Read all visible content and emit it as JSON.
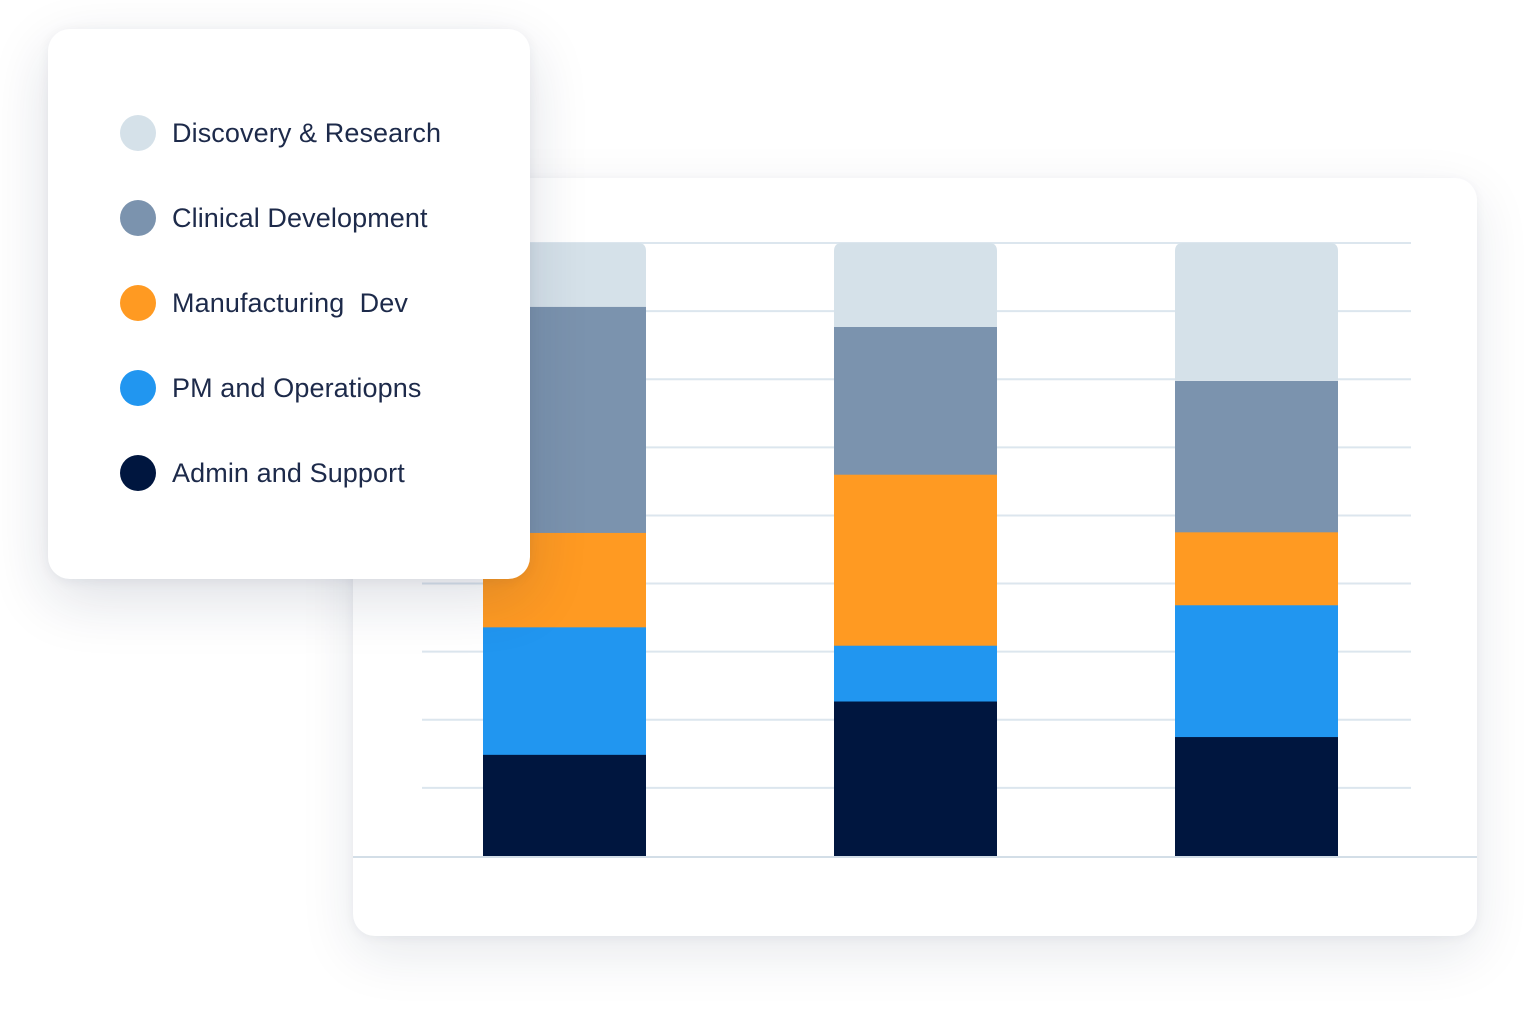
{
  "chart_data": {
    "type": "bar",
    "stacked": true,
    "categories": [
      "",
      "",
      ""
    ],
    "ylim": [
      0,
      100
    ],
    "grid": true,
    "legend_position": "top-left overlay",
    "series": [
      {
        "name": "Admin and Support",
        "color": "#00163f",
        "values": [
          16.6,
          25.3,
          19.5
        ]
      },
      {
        "name": "PM and Operatiopns",
        "color": "#2196f0",
        "values": [
          20.8,
          9.1,
          21.5
        ]
      },
      {
        "name": "Manufacturing  Dev",
        "color": "#ff9a22",
        "values": [
          15.4,
          27.9,
          11.9
        ]
      },
      {
        "name": "Clinical Development",
        "color": "#7b93ae",
        "values": [
          36.8,
          24.0,
          24.6
        ]
      },
      {
        "name": "Discovery & Research",
        "color": "#d5e1e9",
        "values": [
          10.4,
          13.7,
          22.5
        ]
      }
    ]
  },
  "legend": {
    "items": [
      {
        "label": "Discovery & Research",
        "color": "#d5e1e9"
      },
      {
        "label": "Clinical Development",
        "color": "#7b93ae"
      },
      {
        "label": "Manufacturing  Dev",
        "color": "#ff9a22"
      },
      {
        "label": "PM and Operatiopns",
        "color": "#2196f0"
      },
      {
        "label": "Admin and Support",
        "color": "#00163f"
      }
    ]
  },
  "colors": {
    "grid": "#dce6ee",
    "baseline": "#d3dee7",
    "text": "#1d2a4a"
  }
}
